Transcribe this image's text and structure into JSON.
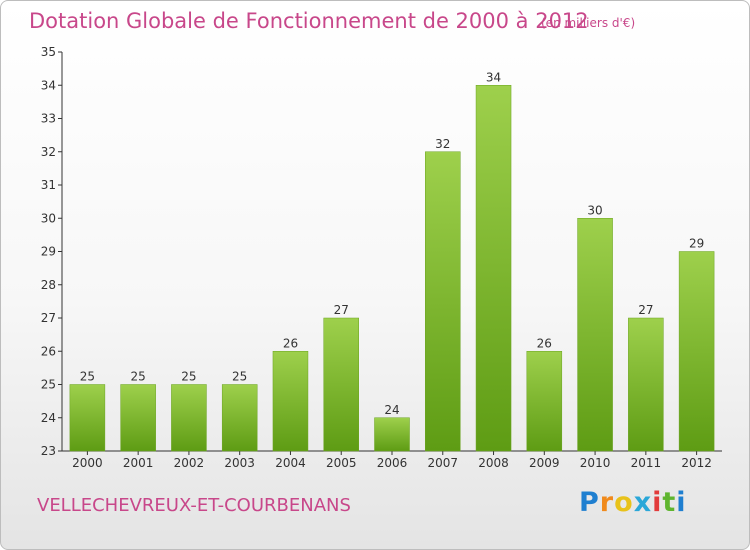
{
  "header": {
    "title": "Dotation Globale de Fonctionnement de 2000 à 2012",
    "subtitle": "(en milliers d'€)"
  },
  "footer": {
    "commune": "VELLECHEVREUX-ET-COURBENANS",
    "brand_letters": [
      "P",
      "r",
      "o",
      "x",
      "i",
      "t",
      "i"
    ]
  },
  "colors": {
    "title": "#c8478a",
    "bar_top": "#9ed04c",
    "bar_bottom": "#5e9c14",
    "axis": "#333333"
  },
  "chart_data": {
    "type": "bar",
    "categories": [
      "2000",
      "2001",
      "2002",
      "2003",
      "2004",
      "2005",
      "2006",
      "2007",
      "2008",
      "2009",
      "2010",
      "2011",
      "2012"
    ],
    "values": [
      25,
      25,
      25,
      25,
      26,
      27,
      24,
      32,
      34,
      26,
      30,
      27,
      29
    ],
    "title": "Dotation Globale de Fonctionnement de 2000 à 2012",
    "subtitle": "(en milliers d'€)",
    "ylim": [
      23,
      35
    ],
    "yticks": [
      23,
      24,
      25,
      26,
      27,
      28,
      29,
      30,
      31,
      32,
      33,
      34,
      35
    ],
    "grid": false,
    "data_labels": true
  }
}
